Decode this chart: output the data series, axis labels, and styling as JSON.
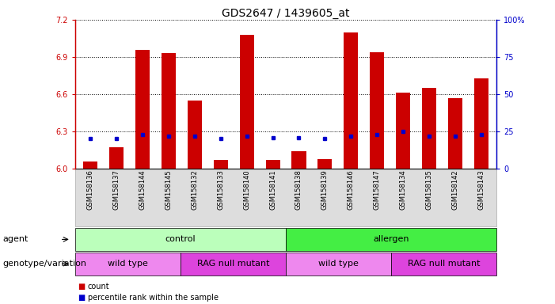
{
  "title": "GDS2647 / 1439605_at",
  "samples": [
    "GSM158136",
    "GSM158137",
    "GSM158144",
    "GSM158145",
    "GSM158132",
    "GSM158133",
    "GSM158140",
    "GSM158141",
    "GSM158138",
    "GSM158139",
    "GSM158146",
    "GSM158147",
    "GSM158134",
    "GSM158135",
    "GSM158142",
    "GSM158143"
  ],
  "count_values": [
    6.06,
    6.17,
    6.96,
    6.93,
    6.55,
    6.07,
    7.08,
    6.07,
    6.14,
    6.08,
    7.1,
    6.94,
    6.61,
    6.65,
    6.57,
    6.73
  ],
  "percentile_values": [
    20,
    20,
    23,
    22,
    22,
    20,
    22,
    21,
    21,
    20,
    22,
    23,
    25,
    22,
    22,
    23
  ],
  "y_min": 6.0,
  "y_max": 7.2,
  "y_ticks": [
    6.0,
    6.3,
    6.6,
    6.9,
    7.2
  ],
  "y2_ticks": [
    0,
    25,
    50,
    75,
    100
  ],
  "bar_color": "#cc0000",
  "dot_color": "#0000cc",
  "agent_control_color": "#bbffbb",
  "agent_allergen_color": "#44ee44",
  "genotype_wt_color": "#ee88ee",
  "genotype_rag_color": "#dd44dd",
  "agent_row": [
    {
      "label": "control",
      "start": 0,
      "end": 8
    },
    {
      "label": "allergen",
      "start": 8,
      "end": 16
    }
  ],
  "genotype_row": [
    {
      "label": "wild type",
      "start": 0,
      "end": 4
    },
    {
      "label": "RAG null mutant",
      "start": 4,
      "end": 8
    },
    {
      "label": "wild type",
      "start": 8,
      "end": 12
    },
    {
      "label": "RAG null mutant",
      "start": 12,
      "end": 16
    }
  ],
  "legend_count_label": "count",
  "legend_pct_label": "percentile rank within the sample",
  "agent_label": "agent",
  "genotype_label": "genotype/variation",
  "title_fontsize": 10,
  "tick_fontsize": 7,
  "label_fontsize": 8
}
